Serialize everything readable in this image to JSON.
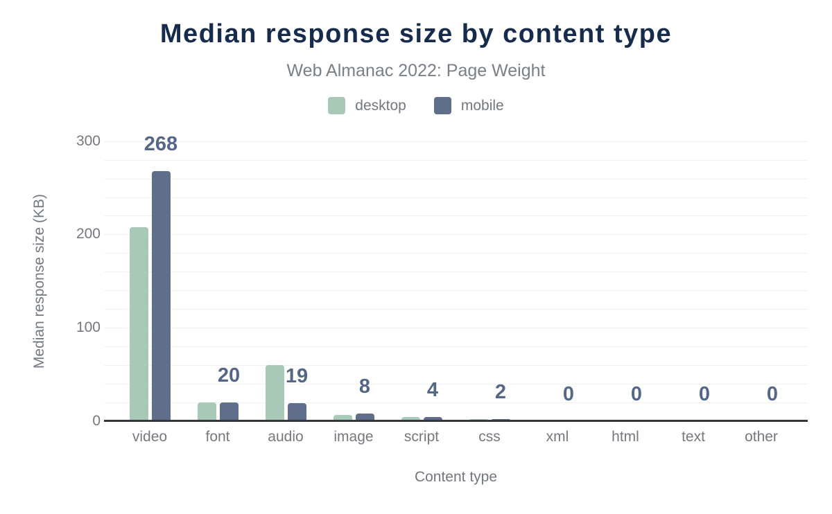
{
  "header": {
    "title": "Median response size by content type",
    "subtitle": "Web Almanac 2022: Page Weight"
  },
  "legend": {
    "items": [
      {
        "label": "desktop",
        "color": "#a8c9b8"
      },
      {
        "label": "mobile",
        "color": "#5f6e8a"
      }
    ]
  },
  "chart_data": {
    "type": "bar",
    "title": "Median response size by content type",
    "subtitle": "Web Almanac 2022: Page Weight",
    "categories": [
      "video",
      "font",
      "audio",
      "image",
      "script",
      "css",
      "xml",
      "html",
      "text",
      "other"
    ],
    "series": [
      {
        "name": "desktop",
        "color": "#a8c9b8",
        "values": [
          208,
          20,
          60,
          6,
          4,
          2,
          0,
          0,
          0,
          0
        ]
      },
      {
        "name": "mobile",
        "color": "#5f6e8a",
        "values": [
          268,
          20,
          19,
          8,
          4,
          2,
          0,
          0,
          0,
          0
        ]
      }
    ],
    "bar_labels": {
      "series": "mobile",
      "values": [
        "268",
        "20",
        "19",
        "8",
        "4",
        "2",
        "0",
        "0",
        "0",
        "0"
      ]
    },
    "xlabel": "Content type",
    "ylabel": "Median response size (KB)",
    "yticks": [
      0,
      100,
      200,
      300
    ],
    "ylim": [
      0,
      300
    ],
    "grid": true,
    "grid_step": 20,
    "legend_position": "top-center"
  },
  "colors": {
    "background": "#ffffff",
    "title": "#172b4d",
    "subtitle": "#7a7f88",
    "axis_text": "#77787e",
    "data_label": "#556788",
    "gridline": "#f1f1f4",
    "axis_line": "#34363b"
  }
}
